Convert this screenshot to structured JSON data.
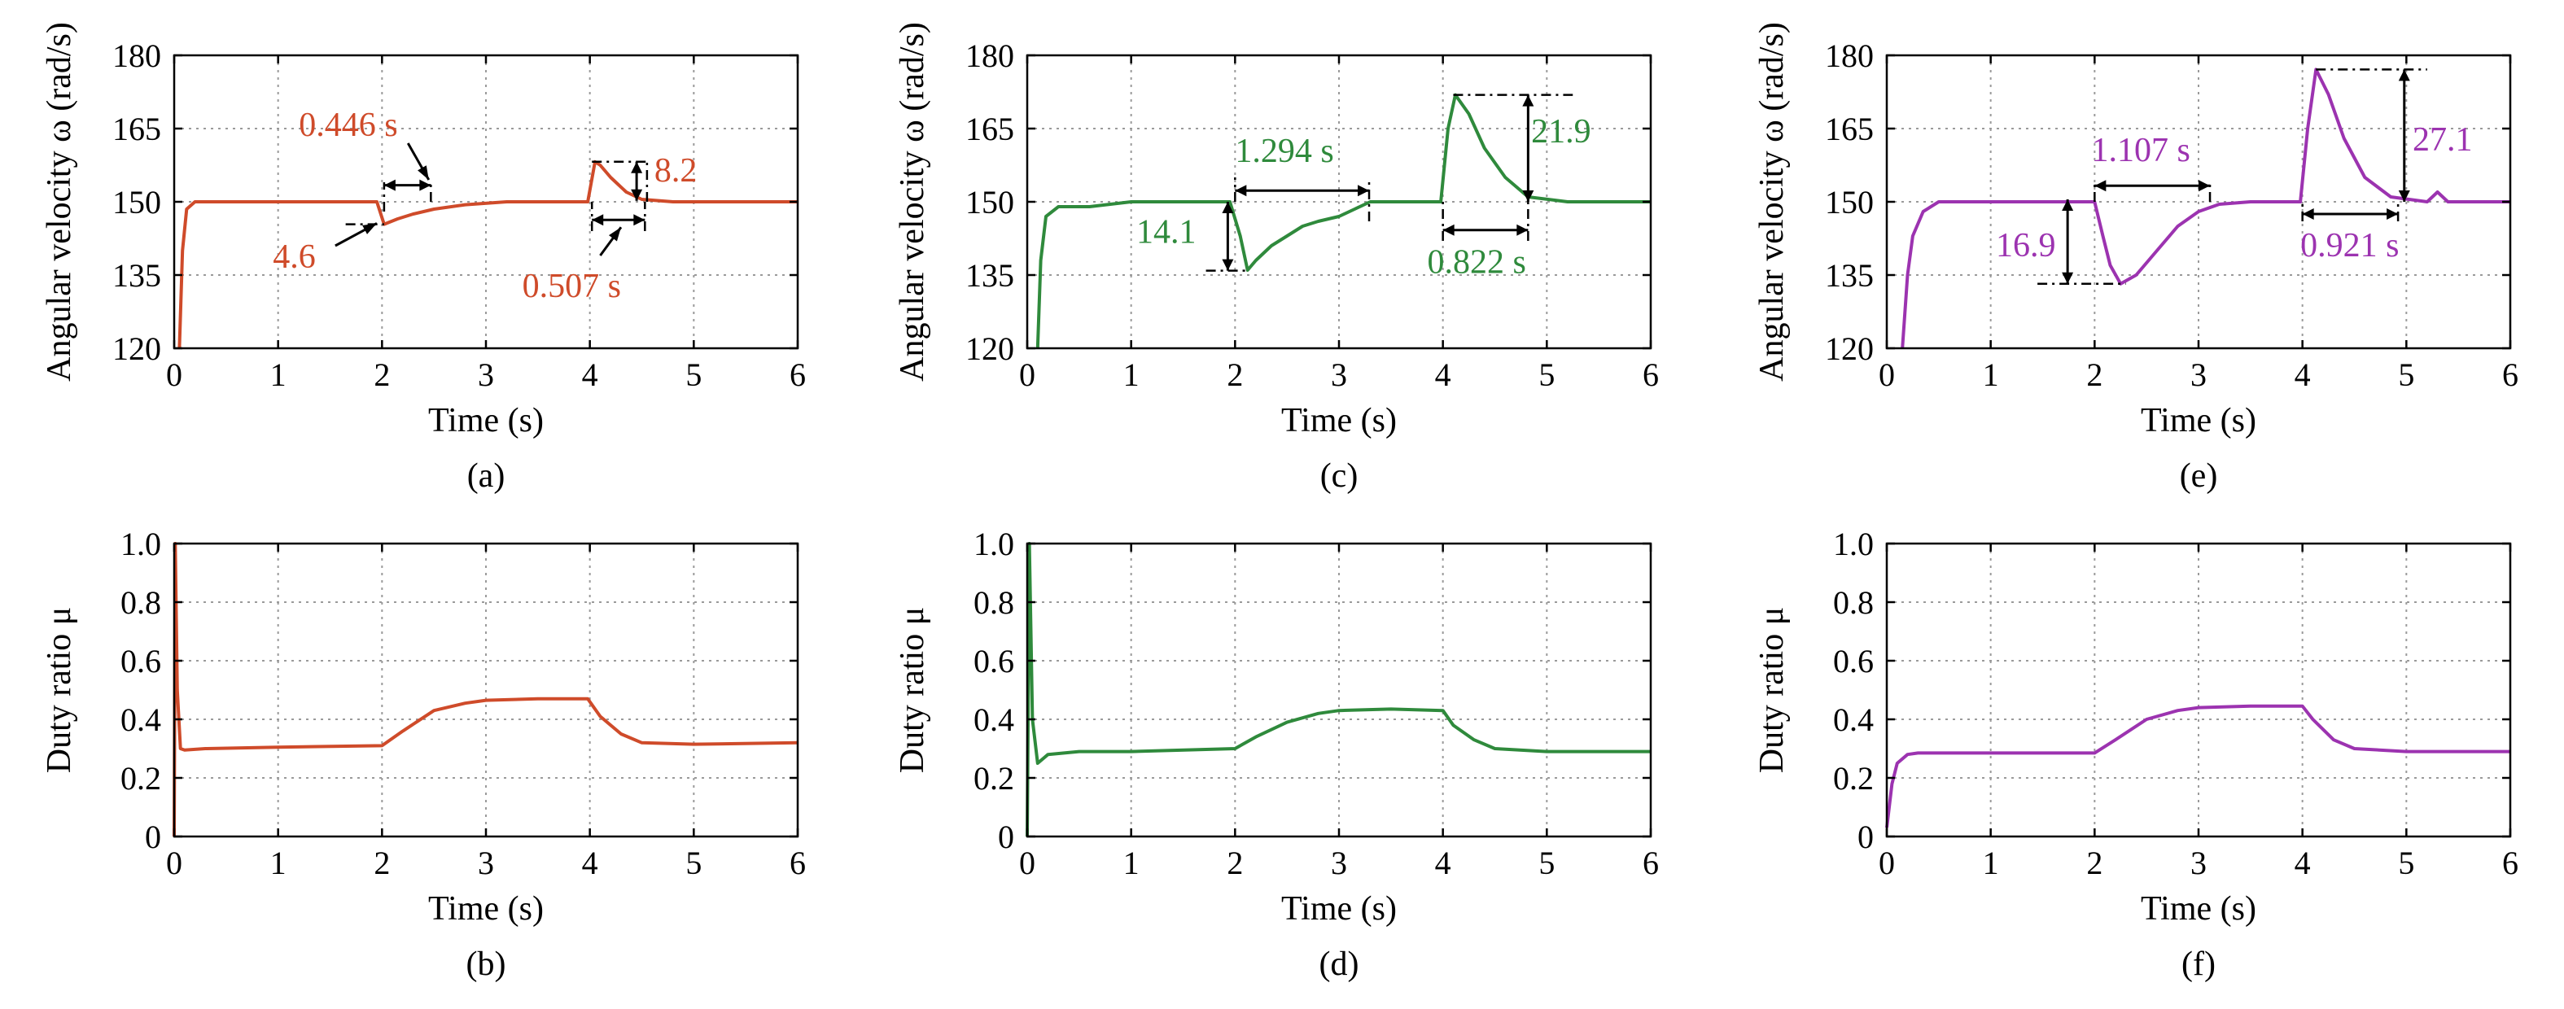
{
  "colors": {
    "panel_a": "#cf4b2a",
    "panel_c": "#2f8a3c",
    "panel_e": "#9c33b0"
  },
  "chart_data": [
    {
      "id": "a",
      "type": "line",
      "caption": "(a)",
      "xlabel": "Time (s)",
      "ylabel": "Angular velocity ω (rad/s)",
      "xlim": [
        0,
        6
      ],
      "ylim": [
        120,
        180
      ],
      "xticks": [
        "0",
        "1",
        "2",
        "3",
        "4",
        "5",
        "6"
      ],
      "yticks": [
        "120",
        "135",
        "150",
        "165",
        "180"
      ],
      "grid": true,
      "series": [
        {
          "x": [
            0.05,
            0.08,
            0.12,
            0.2,
            0.5,
            0.8,
            1.0,
            1.5,
            1.95,
            2.02,
            2.15,
            2.3,
            2.5,
            2.8,
            3.2,
            3.6,
            3.98,
            4.05,
            4.1,
            4.2,
            4.35,
            4.5,
            4.8,
            5.2,
            5.6,
            6.0
          ],
          "y": [
            120,
            140,
            148.5,
            150,
            150,
            150,
            150,
            150,
            150,
            145.4,
            146.5,
            147.5,
            148.5,
            149.4,
            150,
            150,
            150,
            158.2,
            157.5,
            155,
            152,
            150.5,
            150,
            150,
            150,
            150
          ]
        }
      ],
      "annotations": [
        "0.446 s",
        "4.6",
        "8.2",
        "0.507 s"
      ]
    },
    {
      "id": "b",
      "type": "line",
      "caption": "(b)",
      "xlabel": "Time (s)",
      "ylabel": "Duty ratio μ",
      "xlim": [
        0,
        6
      ],
      "ylim": [
        0,
        1.0
      ],
      "xticks": [
        "0",
        "1",
        "2",
        "3",
        "4",
        "5",
        "6"
      ],
      "yticks": [
        "0",
        "0.2",
        "0.4",
        "0.6",
        "0.8",
        "1.0"
      ],
      "grid": true,
      "series": [
        {
          "x": [
            0,
            0.01,
            0.03,
            0.06,
            0.1,
            0.3,
            1.0,
            2.0,
            2.2,
            2.5,
            2.8,
            3.0,
            3.5,
            3.98,
            4.1,
            4.3,
            4.5,
            5.0,
            6.0
          ],
          "y": [
            0,
            1.0,
            0.5,
            0.3,
            0.295,
            0.3,
            0.305,
            0.31,
            0.36,
            0.43,
            0.455,
            0.465,
            0.47,
            0.47,
            0.41,
            0.35,
            0.32,
            0.315,
            0.32
          ]
        }
      ]
    },
    {
      "id": "c",
      "type": "line",
      "caption": "(c)",
      "xlabel": "Time (s)",
      "ylabel": "Angular velocity ω (rad/s)",
      "xlim": [
        0,
        6
      ],
      "ylim": [
        120,
        180
      ],
      "xticks": [
        "0",
        "1",
        "2",
        "3",
        "4",
        "5",
        "6"
      ],
      "yticks": [
        "120",
        "135",
        "150",
        "165",
        "180"
      ],
      "grid": true,
      "series": [
        {
          "x": [
            0.1,
            0.13,
            0.18,
            0.3,
            0.6,
            1.0,
            1.5,
            1.95,
            2.05,
            2.12,
            2.2,
            2.35,
            2.5,
            2.65,
            2.8,
            3.0,
            3.15,
            3.3,
            3.5,
            3.98,
            4.05,
            4.12,
            4.25,
            4.4,
            4.6,
            4.82,
            5.2,
            6.0
          ],
          "y": [
            120,
            138,
            147,
            149,
            149,
            150,
            150,
            150,
            143,
            136,
            138,
            141,
            143,
            145,
            146,
            147,
            148.5,
            150,
            150,
            150,
            165,
            171.9,
            168,
            161,
            155,
            151,
            150,
            150
          ]
        }
      ],
      "annotations": [
        "1.294 s",
        "14.1",
        "21.9",
        "0.822 s"
      ]
    },
    {
      "id": "d",
      "type": "line",
      "caption": "(d)",
      "xlabel": "Time (s)",
      "ylabel": "Duty ratio μ",
      "xlim": [
        0,
        6
      ],
      "ylim": [
        0,
        1.0
      ],
      "xticks": [
        "0",
        "1",
        "2",
        "3",
        "4",
        "5",
        "6"
      ],
      "yticks": [
        "0",
        "0.2",
        "0.4",
        "0.6",
        "0.8",
        "1.0"
      ],
      "grid": true,
      "series": [
        {
          "x": [
            0,
            0.02,
            0.05,
            0.1,
            0.2,
            0.5,
            1.0,
            2.0,
            2.2,
            2.5,
            2.8,
            3.0,
            3.5,
            4.0,
            4.1,
            4.3,
            4.5,
            5.0,
            6.0
          ],
          "y": [
            0,
            1.0,
            0.4,
            0.25,
            0.28,
            0.29,
            0.29,
            0.3,
            0.34,
            0.39,
            0.42,
            0.43,
            0.435,
            0.43,
            0.38,
            0.33,
            0.3,
            0.29,
            0.29
          ]
        }
      ]
    },
    {
      "id": "e",
      "type": "line",
      "caption": "(e)",
      "xlabel": "Time (s)",
      "ylabel": "Angular velocity ω (rad/s)",
      "xlim": [
        0,
        6
      ],
      "ylim": [
        120,
        180
      ],
      "xticks": [
        "0",
        "1",
        "2",
        "3",
        "4",
        "5",
        "6"
      ],
      "yticks": [
        "120",
        "135",
        "150",
        "165",
        "180"
      ],
      "grid": true,
      "series": [
        {
          "x": [
            0.15,
            0.2,
            0.25,
            0.35,
            0.5,
            0.8,
            1.2,
            1.6,
            2.0,
            2.08,
            2.15,
            2.25,
            2.4,
            2.6,
            2.8,
            3.0,
            3.2,
            3.5,
            3.98,
            4.05,
            4.13,
            4.25,
            4.4,
            4.6,
            4.85,
            5.2,
            5.3,
            5.4,
            6.0
          ],
          "y": [
            120,
            135,
            143,
            148,
            150,
            150,
            150,
            150,
            150,
            143,
            137,
            133.2,
            135,
            140,
            145,
            148,
            149.5,
            150,
            150,
            165,
            177.1,
            172,
            163,
            155,
            151,
            150,
            152,
            150,
            150
          ]
        }
      ],
      "annotations": [
        "1.107 s",
        "16.9",
        "27.1",
        "0.921 s"
      ]
    },
    {
      "id": "f",
      "type": "line",
      "caption": "(f)",
      "xlabel": "Time (s)",
      "ylabel": "Duty ratio μ",
      "xlim": [
        0,
        6
      ],
      "ylim": [
        0,
        1.0
      ],
      "xticks": [
        "0",
        "1",
        "2",
        "3",
        "4",
        "5",
        "6"
      ],
      "yticks": [
        "0",
        "0.2",
        "0.4",
        "0.6",
        "0.8",
        "1.0"
      ],
      "grid": true,
      "series": [
        {
          "x": [
            0,
            0.05,
            0.1,
            0.2,
            0.3,
            0.5,
            1.0,
            2.0,
            2.2,
            2.5,
            2.8,
            3.0,
            3.5,
            4.0,
            4.1,
            4.3,
            4.5,
            5.0,
            6.0
          ],
          "y": [
            0.03,
            0.18,
            0.25,
            0.28,
            0.285,
            0.285,
            0.285,
            0.285,
            0.33,
            0.4,
            0.43,
            0.44,
            0.445,
            0.445,
            0.4,
            0.33,
            0.3,
            0.29,
            0.29
          ]
        }
      ]
    }
  ]
}
